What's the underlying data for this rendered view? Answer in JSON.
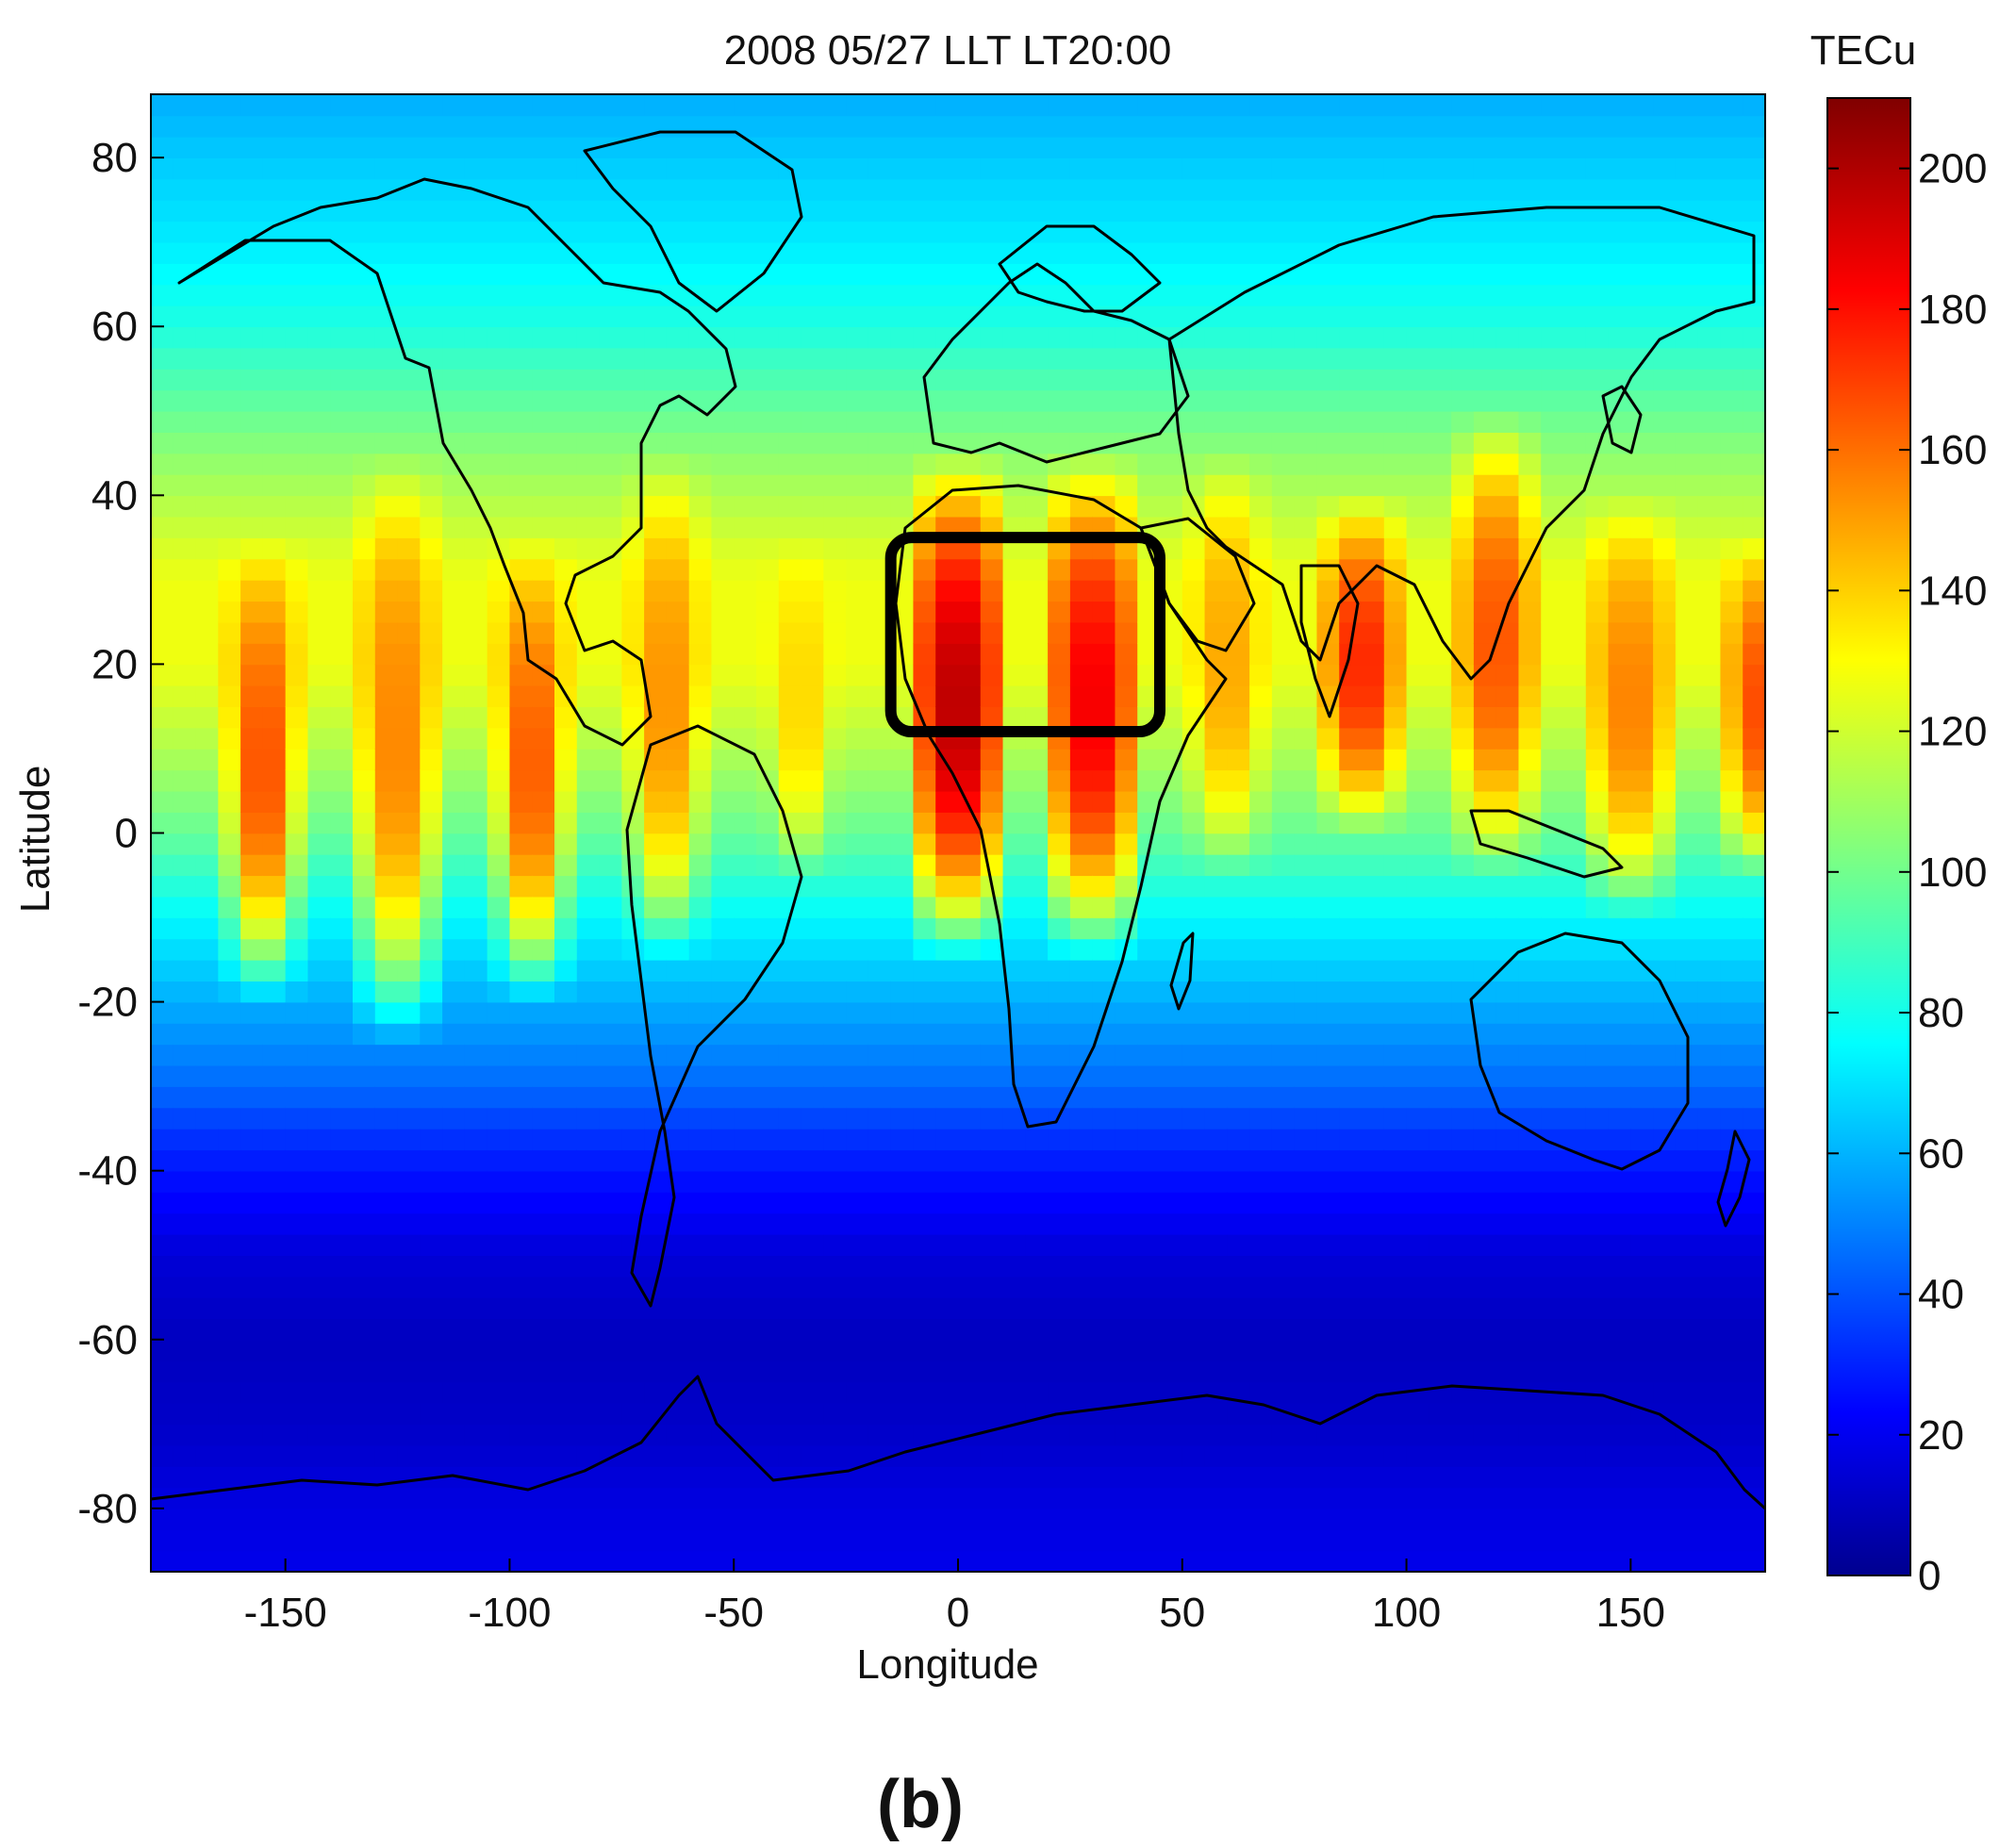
{
  "chart_data": {
    "type": "heatmap",
    "title": "2008 05/27 LLT  LT20:00",
    "xlabel": "Longitude",
    "ylabel": "Latitude",
    "xlim": [
      -180,
      180
    ],
    "ylim": [
      -87.5,
      87.5
    ],
    "xticks": [
      -150,
      -100,
      -50,
      0,
      50,
      100,
      150
    ],
    "yticks": [
      80,
      60,
      40,
      20,
      0,
      -20,
      -40,
      -60,
      -80
    ],
    "colorbar": {
      "label": "TECu",
      "range": [
        0,
        210
      ],
      "ticks": [
        0,
        20,
        40,
        60,
        80,
        100,
        120,
        140,
        160,
        180,
        200
      ],
      "colormap": "jet"
    },
    "cell_size_deg": {
      "lon": 5,
      "lat": 2.5
    },
    "background_tec_by_lat": {
      "lat": [
        -87.5,
        -80,
        -70,
        -60,
        -50,
        -45,
        -40,
        -35,
        -30,
        -20,
        -10,
        0,
        10,
        20,
        30,
        40,
        50,
        60,
        70,
        80,
        87.5
      ],
      "tec": [
        22,
        20,
        15,
        13,
        18,
        25,
        30,
        38,
        48,
        62,
        78,
        100,
        115,
        128,
        128,
        115,
        100,
        85,
        75,
        68,
        62
      ]
    },
    "enhancement_bands": [
      {
        "lon_center": -155,
        "lon_width": 12,
        "lat_min": -15,
        "lat_max": 30,
        "peak_tec": 170
      },
      {
        "lon_center": -125,
        "lon_width": 14,
        "lat_min": -20,
        "lat_max": 40,
        "peak_tec": 158
      },
      {
        "lon_center": -95,
        "lon_width": 12,
        "lat_min": -15,
        "lat_max": 30,
        "peak_tec": 168
      },
      {
        "lon_center": -65,
        "lon_width": 12,
        "lat_min": -10,
        "lat_max": 40,
        "peak_tec": 155
      },
      {
        "lon_center": -35,
        "lon_width": 10,
        "lat_min": 0,
        "lat_max": 30,
        "peak_tec": 140
      },
      {
        "lon_center": 0,
        "lon_width": 18,
        "lat_min": -10,
        "lat_max": 40,
        "peak_tec": 200
      },
      {
        "lon_center": 30,
        "lon_width": 18,
        "lat_min": -10,
        "lat_max": 40,
        "peak_tec": 188
      },
      {
        "lon_center": 60,
        "lon_width": 12,
        "lat_min": 0,
        "lat_max": 40,
        "peak_tec": 150
      },
      {
        "lon_center": 90,
        "lon_width": 14,
        "lat_min": 5,
        "lat_max": 35,
        "peak_tec": 178
      },
      {
        "lon_center": 120,
        "lon_width": 14,
        "lat_min": 0,
        "lat_max": 45,
        "peak_tec": 168
      },
      {
        "lon_center": 150,
        "lon_width": 16,
        "lat_min": -5,
        "lat_max": 35,
        "peak_tec": 158
      },
      {
        "lon_center": 178,
        "lon_width": 10,
        "lat_min": 0,
        "lat_max": 30,
        "peak_tec": 168
      }
    ],
    "highlight_box": {
      "lon_min": -15,
      "lon_max": 45,
      "lat_min": 12,
      "lat_max": 35
    },
    "overlay": "coastlines",
    "grid": false,
    "panel_label": "(b)"
  }
}
